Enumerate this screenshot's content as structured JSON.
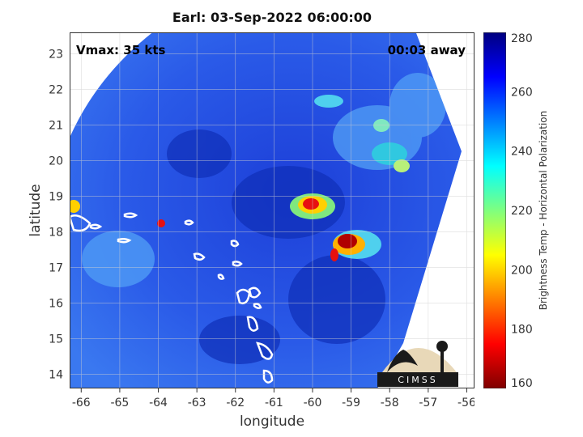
{
  "title": "Earl: 03-Sep-2022 06:00:00",
  "annotations": {
    "vmax": "Vmax: 35 kts",
    "time_away": "00:03 away"
  },
  "axes": {
    "xlabel": "longitude",
    "ylabel": "latitude",
    "x_ticks": [
      "-66",
      "-65",
      "-64",
      "-63",
      "-62",
      "-61",
      "-60",
      "-59",
      "-58",
      "-57",
      "-56"
    ],
    "y_ticks": [
      "14",
      "15",
      "16",
      "17",
      "18",
      "19",
      "20",
      "21",
      "22",
      "23"
    ],
    "xlim": [
      -66.3,
      -55.8
    ],
    "ylim": [
      13.6,
      23.6
    ],
    "grid": true
  },
  "colorbar": {
    "label": "Brightness Temp - Horizontal Polarization",
    "ticks": [
      "160",
      "180",
      "200",
      "220",
      "240",
      "260",
      "280"
    ],
    "range": [
      160,
      280
    ],
    "colormap": [
      "#7f0000",
      "#ff0000",
      "#ff7f00",
      "#ffff00",
      "#7fff7f",
      "#00ffff",
      "#007fff",
      "#0000ff",
      "#00007f"
    ]
  },
  "logo": {
    "text": "CIMSS"
  },
  "colors": {
    "background_tb": "#2a58e6",
    "warm_tb": "#1433c8",
    "convective": "#e01010"
  }
}
